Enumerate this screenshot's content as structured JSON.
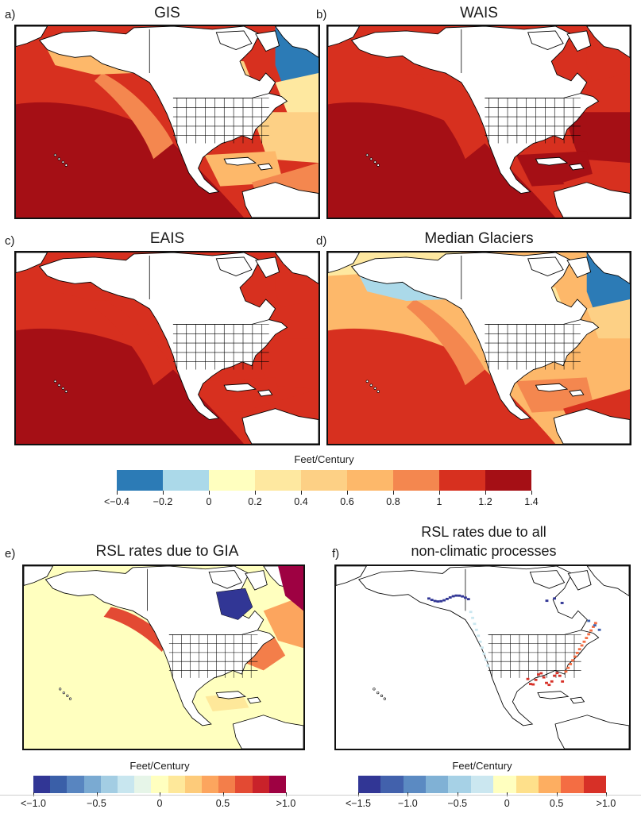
{
  "chart_data": [
    {
      "type": "heatmap",
      "panel": "a)",
      "title": "GIS",
      "scale": "feet_per_century_main",
      "regions": {
        "north_pacific": 1.05,
        "central_pacific": 1.25,
        "california_coast": 0.85,
        "gulf_of_alaska": 0.75,
        "hudson_bay": 0.55,
        "baffin_bay": -0.25,
        "labrador": 0.3,
        "nw_atlantic": 0.45,
        "caribbean": 0.75,
        "south_atlantic": 0.95
      }
    },
    {
      "type": "heatmap",
      "panel": "b)",
      "title": "WAIS",
      "scale": "feet_per_century_main",
      "regions": {
        "north_pacific": 1.05,
        "central_pacific": 1.25,
        "california_coast": 1.15,
        "gulf_of_alaska": 1.05,
        "hudson_bay": 1.05,
        "baffin_bay": 1.05,
        "labrador": 1.1,
        "nw_atlantic": 1.25,
        "caribbean": 1.25,
        "south_atlantic": 1.05
      }
    },
    {
      "type": "heatmap",
      "panel": "c)",
      "title": "EAIS",
      "scale": "feet_per_century_main",
      "regions": {
        "north_pacific": 1.05,
        "central_pacific": 1.25,
        "california_coast": 1.05,
        "gulf_of_alaska": 1.05,
        "hudson_bay": 1.05,
        "baffin_bay": 1.05,
        "labrador": 1.05,
        "nw_atlantic": 1.05,
        "caribbean": 1.05,
        "south_atlantic": 1.05
      }
    },
    {
      "type": "heatmap",
      "panel": "d)",
      "title": "Median Glaciers",
      "scale": "feet_per_century_main",
      "regions": {
        "arctic": 0.25,
        "north_pacific": 0.65,
        "gulf_of_alaska": -0.1,
        "california_coast": 0.85,
        "central_pacific": 1.05,
        "hudson_bay": 0.35,
        "baffin_bay": -0.3,
        "labrador": 0.5,
        "nw_atlantic": 0.75,
        "caribbean": 0.95,
        "south_atlantic": 1.05
      }
    },
    {
      "type": "heatmap",
      "panel": "e)",
      "title": "RSL rates due to GIA",
      "scale": "feet_per_century_gia",
      "regions": {
        "pacific": 0.05,
        "hudson_bay": -0.95,
        "alaska_coast": 0.6,
        "us_east_coast": 0.55,
        "nw_atlantic": 0.45,
        "greenland_margin": 1.0,
        "gulf_of_mexico": 0.15
      }
    },
    {
      "type": "heatmap",
      "panel": "f)",
      "title": "RSL rates due to all non-climatic processes",
      "scale": "feet_per_century_nonclimatic",
      "regions": {
        "alaska_stations": -1.3,
        "pacific_northwest": -0.3,
        "gulf_coast": 1.0,
        "us_east_coast": 0.7,
        "hudson_bay_stations": -1.3,
        "labrador": -1.2
      }
    }
  ],
  "panels": {
    "a": {
      "letter": "a)",
      "title": "GIS"
    },
    "b": {
      "letter": "b)",
      "title": "WAIS"
    },
    "c": {
      "letter": "c)",
      "title": "EAIS"
    },
    "d": {
      "letter": "d)",
      "title": "Median Glaciers"
    },
    "e": {
      "letter": "e)",
      "title": "RSL rates due to GIA"
    },
    "f": {
      "letter": "f)",
      "title_line1": "RSL rates due to all",
      "title_line2": "non-climatic processes"
    }
  },
  "colorbars": {
    "main": {
      "label": "Feet/Century",
      "colors": [
        "#2c7bb6",
        "#abd9e9",
        "#ffffbf",
        "#fee8a0",
        "#fdd085",
        "#fdb86a",
        "#f4874f",
        "#d7301f",
        "#a50f15"
      ],
      "ticks": [
        "<−0.4",
        "−0.2",
        "0",
        "0.2",
        "0.4",
        "0.6",
        "0.8",
        "1",
        "1.2",
        "1.4"
      ]
    },
    "gia": {
      "label": "Feet/Century",
      "colors": [
        "#313695",
        "#3a5fa8",
        "#5885c0",
        "#7aaad2",
        "#a3cde3",
        "#c8e6ef",
        "#e6f5e8",
        "#ffffbf",
        "#fee89a",
        "#fdcb7a",
        "#fca55e",
        "#f37e4a",
        "#e34a33",
        "#c9222a",
        "#9e0142"
      ],
      "ticks": [
        "<−1.0",
        "−0.5",
        "0",
        "0.5",
        ">1.0"
      ]
    },
    "nonclimatic": {
      "label": "Feet/Century",
      "colors": [
        "#313695",
        "#4261ac",
        "#5b8ac2",
        "#80b1d5",
        "#a6d1e6",
        "#cbe7f0",
        "#ffffbf",
        "#fee08b",
        "#fdae61",
        "#f46d43",
        "#d73027"
      ],
      "ticks": [
        "<−1.5",
        "−1.0",
        "−0.5",
        "0",
        "0.5",
        ">1.0"
      ]
    }
  },
  "colors": {
    "border": "#111111",
    "land": "#ffffff",
    "coast": "#000000",
    "gia_ocean": "#e6f5e8"
  }
}
